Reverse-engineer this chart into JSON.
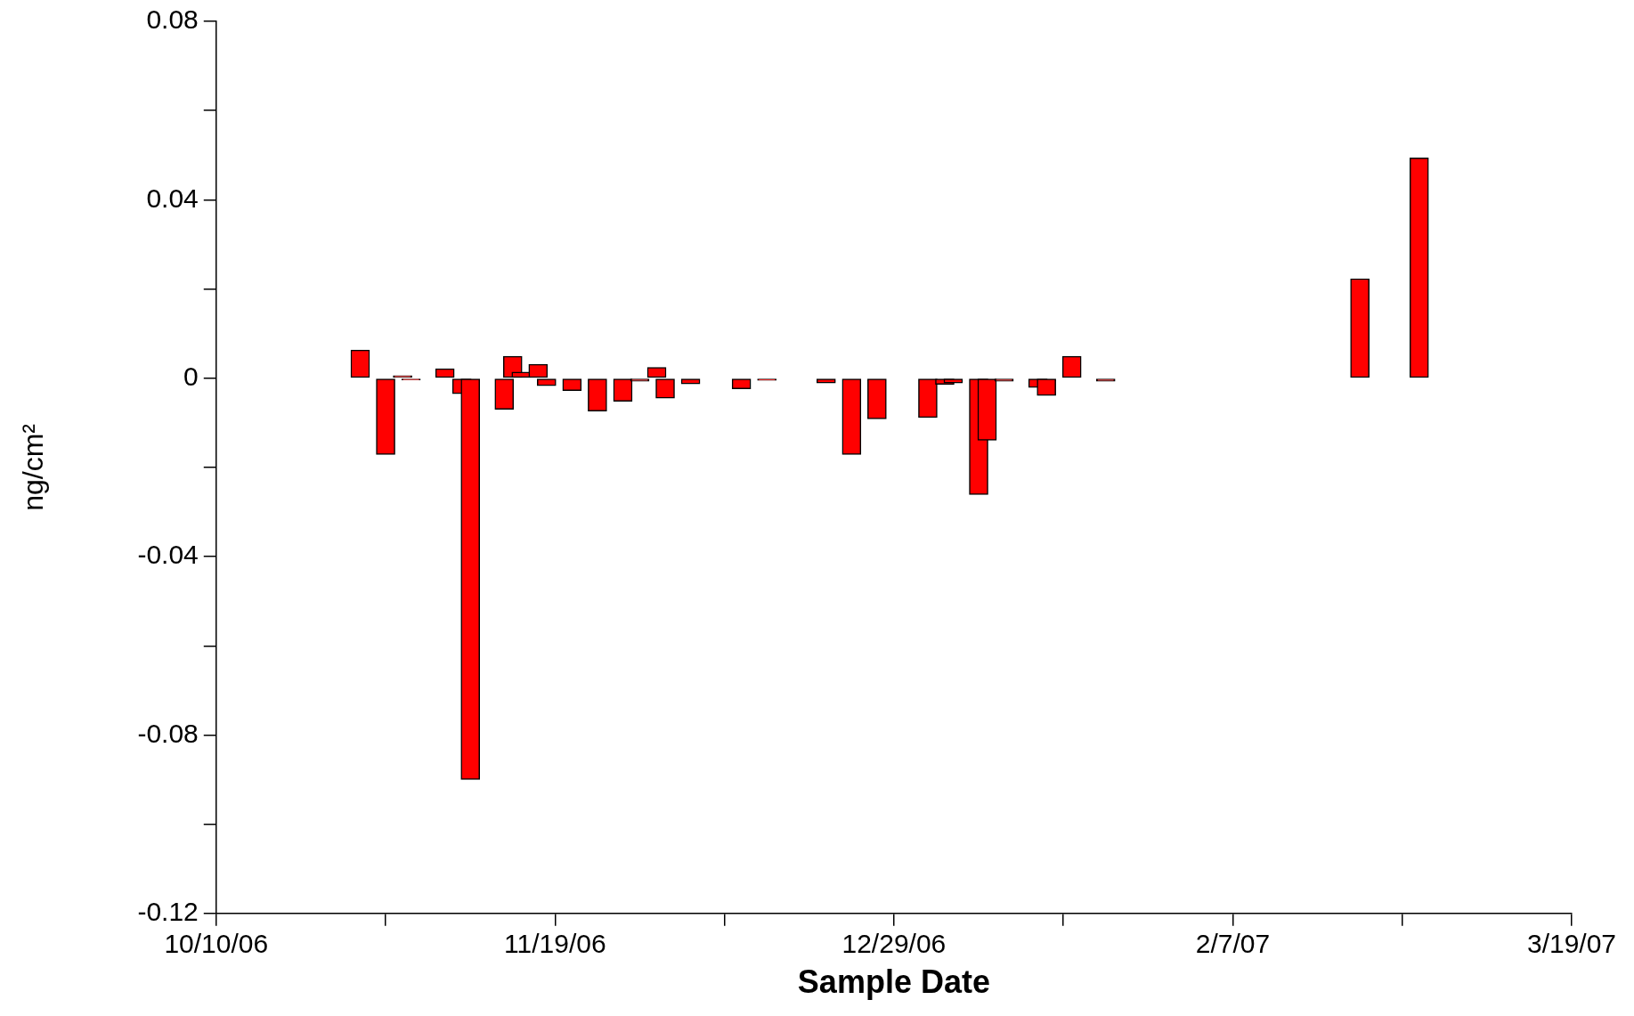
{
  "chart_data": {
    "type": "bar",
    "xlabel": "Sample Date",
    "ylabel": "ng/cm²",
    "color": "#ff0000",
    "grid": false,
    "legend": false,
    "x": [
      "2006-10-27",
      "2006-10-30",
      "2006-11-01",
      "2006-11-02",
      "2006-11-06",
      "2006-11-08",
      "2006-11-09",
      "2006-11-13",
      "2006-11-14",
      "2006-11-15",
      "2006-11-17",
      "2006-11-18",
      "2006-11-21",
      "2006-11-24",
      "2006-11-27",
      "2006-11-29",
      "2006-12-01",
      "2006-12-02",
      "2006-12-05",
      "2006-12-11",
      "2006-12-14",
      "2006-12-21",
      "2006-12-24",
      "2006-12-27",
      "2007-01-02",
      "2007-01-04",
      "2007-01-05",
      "2007-01-08",
      "2007-01-09",
      "2007-01-11",
      "2007-01-15",
      "2007-01-16",
      "2007-01-19",
      "2007-01-23",
      "2007-02-22",
      "2007-03-01"
    ],
    "values": [
      0.0063,
      -0.0171,
      0.0006,
      -0.0004,
      0.0021,
      -0.0035,
      -0.09,
      -0.007,
      0.0049,
      0.0014,
      0.0031,
      -0.0017,
      -0.0028,
      -0.0074,
      -0.0052,
      -0.0007,
      0.0024,
      -0.0045,
      -0.0013,
      -0.0024,
      -0.0005,
      -0.0011,
      -0.0171,
      -0.0091,
      -0.0088,
      -0.0014,
      -0.0011,
      -0.0261,
      -0.0139,
      -0.0007,
      -0.0021,
      -0.0039,
      0.0049,
      -0.0007,
      0.0223,
      0.0494
    ],
    "xlim": [
      "2006-10-10",
      "2007-03-19"
    ],
    "xticks": [
      {
        "value": "2006-10-10",
        "label": "10/10/06"
      },
      {
        "value": "2006-10-30",
        "label": null
      },
      {
        "value": "2006-11-19",
        "label": "11/19/06"
      },
      {
        "value": "2006-12-09",
        "label": null
      },
      {
        "value": "2006-12-29",
        "label": "12/29/06"
      },
      {
        "value": "2007-01-18",
        "label": null
      },
      {
        "value": "2007-02-07",
        "label": "2/7/07"
      },
      {
        "value": "2007-02-27",
        "label": null
      },
      {
        "value": "2007-03-19",
        "label": "3/19/07"
      }
    ],
    "ylim": [
      -0.12,
      0.08
    ],
    "yticks": [
      -0.12,
      {
        "value": -0.1,
        "label": null
      },
      -0.08,
      {
        "value": -0.06,
        "label": null
      },
      -0.04,
      {
        "value": -0.02,
        "label": null
      },
      0,
      {
        "value": 0.02,
        "label": null
      },
      0.04,
      {
        "value": 0.06,
        "label": null
      },
      0.08
    ]
  }
}
